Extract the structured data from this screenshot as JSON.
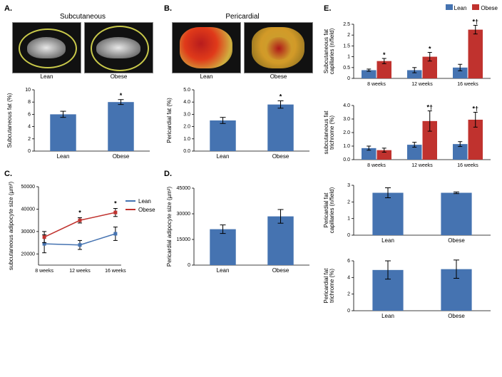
{
  "colors": {
    "lean": "#4573b1",
    "obese": "#c0322e",
    "bg": "#ffffff",
    "axis": "#000000"
  },
  "font": {
    "family": "Arial",
    "axis_size": 7,
    "label_size": 8
  },
  "A": {
    "label": "A.",
    "title": "Subcutaneous",
    "images": [
      "Lean",
      "Obese"
    ],
    "chart": {
      "type": "bar",
      "ylabel": "Subcutaneous fat (%)",
      "categories": [
        "Lean",
        "Obese"
      ],
      "values": [
        6.0,
        8.0
      ],
      "err": [
        0.5,
        0.4
      ],
      "sig": [
        "",
        "*"
      ],
      "ylim": [
        0,
        10
      ],
      "ytick_step": 2,
      "bar_color": "#4573b1",
      "bar_width": 0.45
    }
  },
  "B": {
    "label": "B.",
    "title": "Pericardial",
    "images": [
      "Lean",
      "Obese"
    ],
    "chart": {
      "type": "bar",
      "ylabel": "Pericardial fat (%)",
      "categories": [
        "Lean",
        "Obese"
      ],
      "values": [
        2.5,
        3.8
      ],
      "err": [
        0.25,
        0.3
      ],
      "sig": [
        "",
        "*"
      ],
      "ylim": [
        0,
        5
      ],
      "ytick_step": 1,
      "ytick_decimals": 1,
      "bar_color": "#4573b1",
      "bar_width": 0.45
    }
  },
  "C": {
    "label": "C.",
    "chart": {
      "type": "line",
      "ylabel": "subcutaneous adipocyte size (µm²)",
      "categories": [
        "8 weeks",
        "12 weeks",
        "16 weeks"
      ],
      "series": [
        {
          "name": "Lean",
          "color": "#4573b1",
          "values": [
            24500,
            24000,
            29000
          ],
          "err": [
            4000,
            2000,
            3000
          ]
        },
        {
          "name": "Obese",
          "color": "#c0322e",
          "values": [
            27500,
            35000,
            38500
          ],
          "err": [
            2500,
            1200,
            1800
          ]
        }
      ],
      "sig": [
        "",
        "*",
        "*"
      ],
      "ylim": [
        15000,
        50000
      ],
      "yticks": [
        20000,
        30000,
        40000,
        50000
      ],
      "marker": "square",
      "line_width": 1.5
    }
  },
  "D": {
    "label": "D.",
    "chart": {
      "type": "bar",
      "ylabel": "Pericardial adipocyte size (µm²)",
      "categories": [
        "Lean",
        "Obese"
      ],
      "values": [
        21000,
        28500
      ],
      "err": [
        2500,
        4000
      ],
      "sig": [
        "",
        ""
      ],
      "ylim": [
        0,
        45000
      ],
      "yticks": [
        0,
        15000,
        30000,
        45000
      ],
      "bar_color": "#4573b1",
      "bar_width": 0.45
    }
  },
  "E": {
    "label": "E.",
    "legend": [
      "Lean",
      "Obese"
    ],
    "charts": [
      {
        "type": "grouped-bar",
        "ylabel": "Subcutaneous fat\ncapillaries (n/field)",
        "categories": [
          "8 weeks",
          "12 weeks",
          "16 weeks"
        ],
        "series": [
          {
            "name": "Lean",
            "color": "#4573b1",
            "values": [
              0.38,
              0.38,
              0.5
            ],
            "err": [
              0.05,
              0.12,
              0.15
            ]
          },
          {
            "name": "Obese",
            "color": "#c0322e",
            "values": [
              0.8,
              1.0,
              2.25
            ],
            "err": [
              0.12,
              0.2,
              0.2
            ]
          }
        ],
        "sig_obese": [
          "*",
          "*",
          "*†"
        ],
        "ylim": [
          0,
          2.5
        ],
        "ytick_step": 0.5
      },
      {
        "type": "grouped-bar",
        "ylabel": "subcutaneous fat\ntrichrome (%)",
        "categories": [
          "8 weeks",
          "12 weeks",
          "16 weeks"
        ],
        "series": [
          {
            "name": "Lean",
            "color": "#4573b1",
            "values": [
              0.85,
              1.1,
              1.15
            ],
            "err": [
              0.15,
              0.18,
              0.18
            ]
          },
          {
            "name": "Obese",
            "color": "#c0322e",
            "values": [
              0.7,
              2.85,
              2.95
            ],
            "err": [
              0.15,
              0.75,
              0.55
            ]
          }
        ],
        "sig_obese": [
          "",
          "*†",
          "*†"
        ],
        "ylim": [
          0,
          4
        ],
        "ytick_step": 1,
        "ytick_decimals": 1
      },
      {
        "type": "bar",
        "ylabel": "Pericardial fat\ncapillaries (n/field)",
        "categories": [
          "Lean",
          "Obese"
        ],
        "values": [
          2.55,
          2.55
        ],
        "err": [
          0.3,
          0.05
        ],
        "sig": [
          "",
          ""
        ],
        "ylim": [
          0,
          3
        ],
        "ytick_step": 1,
        "bar_color": "#4573b1",
        "bar_width": 0.45
      },
      {
        "type": "bar",
        "ylabel": "Pericardial fat\ntrichrome (%)",
        "categories": [
          "Lean",
          "Obese"
        ],
        "values": [
          4.9,
          5.0
        ],
        "err": [
          1.1,
          1.1
        ],
        "sig": [
          "",
          ""
        ],
        "ylim": [
          0,
          6
        ],
        "ytick_step": 2,
        "bar_color": "#4573b1",
        "bar_width": 0.45
      }
    ]
  }
}
